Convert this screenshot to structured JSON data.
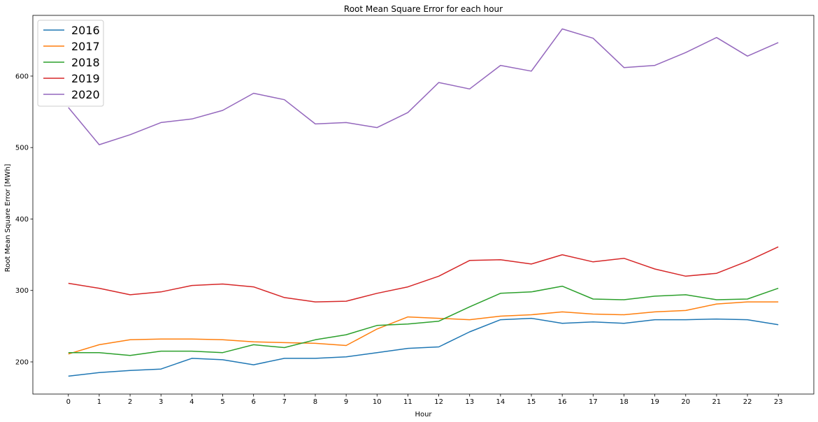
{
  "chart_data": {
    "type": "line",
    "title": "Root Mean Square Error for each hour",
    "xlabel": "Hour",
    "ylabel": "Root Mean Square Error [MWh]",
    "x": [
      0,
      1,
      2,
      3,
      4,
      5,
      6,
      7,
      8,
      9,
      10,
      11,
      12,
      13,
      14,
      15,
      16,
      17,
      18,
      19,
      20,
      21,
      22,
      23
    ],
    "xlim": [
      -1.15,
      24.15
    ],
    "ylim": [
      155,
      685
    ],
    "yticks": [
      200,
      300,
      400,
      500,
      600
    ],
    "grid": false,
    "legend_position": "top-left",
    "series": [
      {
        "name": "2016",
        "color": "#1f77b4",
        "values": [
          180,
          185,
          188,
          190,
          205,
          203,
          196,
          205,
          205,
          207,
          213,
          219,
          221,
          242,
          259,
          261,
          254,
          256,
          254,
          259,
          259,
          260,
          259,
          252
        ]
      },
      {
        "name": "2017",
        "color": "#ff7f0e",
        "values": [
          211,
          224,
          231,
          232,
          232,
          231,
          228,
          227,
          226,
          223,
          246,
          263,
          261,
          259,
          264,
          266,
          270,
          267,
          266,
          270,
          272,
          281,
          284,
          284
        ]
      },
      {
        "name": "2018",
        "color": "#2ca02c",
        "values": [
          213,
          213,
          209,
          215,
          215,
          213,
          224,
          220,
          231,
          238,
          251,
          253,
          257,
          277,
          296,
          298,
          306,
          288,
          287,
          292,
          294,
          287,
          288,
          303
        ]
      },
      {
        "name": "2019",
        "color": "#d62728",
        "values": [
          310,
          303,
          294,
          298,
          307,
          309,
          305,
          290,
          284,
          285,
          296,
          305,
          320,
          342,
          343,
          337,
          350,
          340,
          345,
          330,
          320,
          324,
          341,
          361
        ]
      },
      {
        "name": "2020",
        "color": "#9467bd",
        "values": [
          556,
          504,
          518,
          535,
          540,
          552,
          576,
          567,
          533,
          535,
          528,
          549,
          591,
          582,
          615,
          607,
          666,
          653,
          612,
          615,
          633,
          654,
          628,
          647
        ]
      }
    ]
  }
}
